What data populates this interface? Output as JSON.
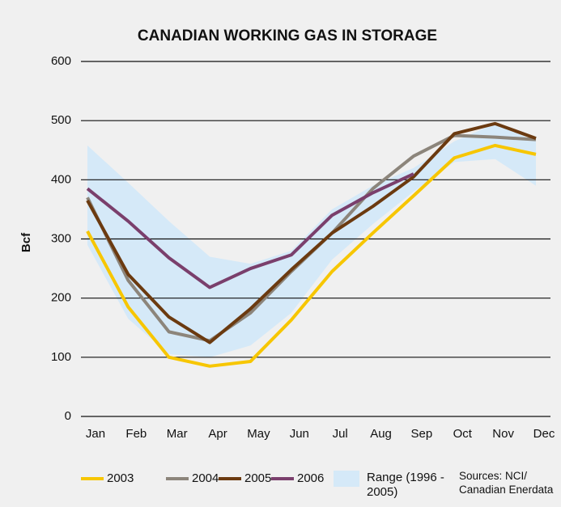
{
  "chart_data": {
    "type": "line",
    "title": "CANADIAN WORKING GAS IN STORAGE",
    "y_label": "Bcf",
    "categories": [
      "Jan",
      "Feb",
      "Mar",
      "Apr",
      "May",
      "Jun",
      "Jul",
      "Aug",
      "Sep",
      "Oct",
      "Nov",
      "Dec"
    ],
    "ylim": [
      0,
      600
    ],
    "yticks": [
      0,
      100,
      200,
      300,
      400,
      500,
      600
    ],
    "grid": true,
    "range": {
      "name": "Range (1996 - 2005)",
      "color": "#d5e9f8",
      "lower": [
        290,
        165,
        105,
        100,
        120,
        175,
        265,
        325,
        380,
        430,
        435,
        390
      ],
      "upper": [
        458,
        395,
        330,
        270,
        258,
        280,
        350,
        390,
        420,
        465,
        495,
        465
      ]
    },
    "series": [
      {
        "name": "2003",
        "color": "#f7c600",
        "values": [
          313,
          185,
          100,
          85,
          93,
          163,
          245,
          310,
          373,
          437,
          458,
          443
        ]
      },
      {
        "name": "2004",
        "color": "#8c857b",
        "values": [
          370,
          230,
          143,
          128,
          175,
          245,
          310,
          385,
          440,
          475,
          472,
          468
        ]
      },
      {
        "name": "2005",
        "color": "#6b3a10",
        "values": [
          365,
          240,
          168,
          125,
          182,
          248,
          310,
          355,
          405,
          478,
          495,
          470
        ]
      },
      {
        "name": "2006",
        "color": "#7a3f6c",
        "values": [
          385,
          330,
          268,
          218,
          250,
          273,
          340,
          378,
          410,
          null,
          null,
          null
        ]
      }
    ],
    "source": "Sources: NCI/ Canadian Enerdata"
  }
}
